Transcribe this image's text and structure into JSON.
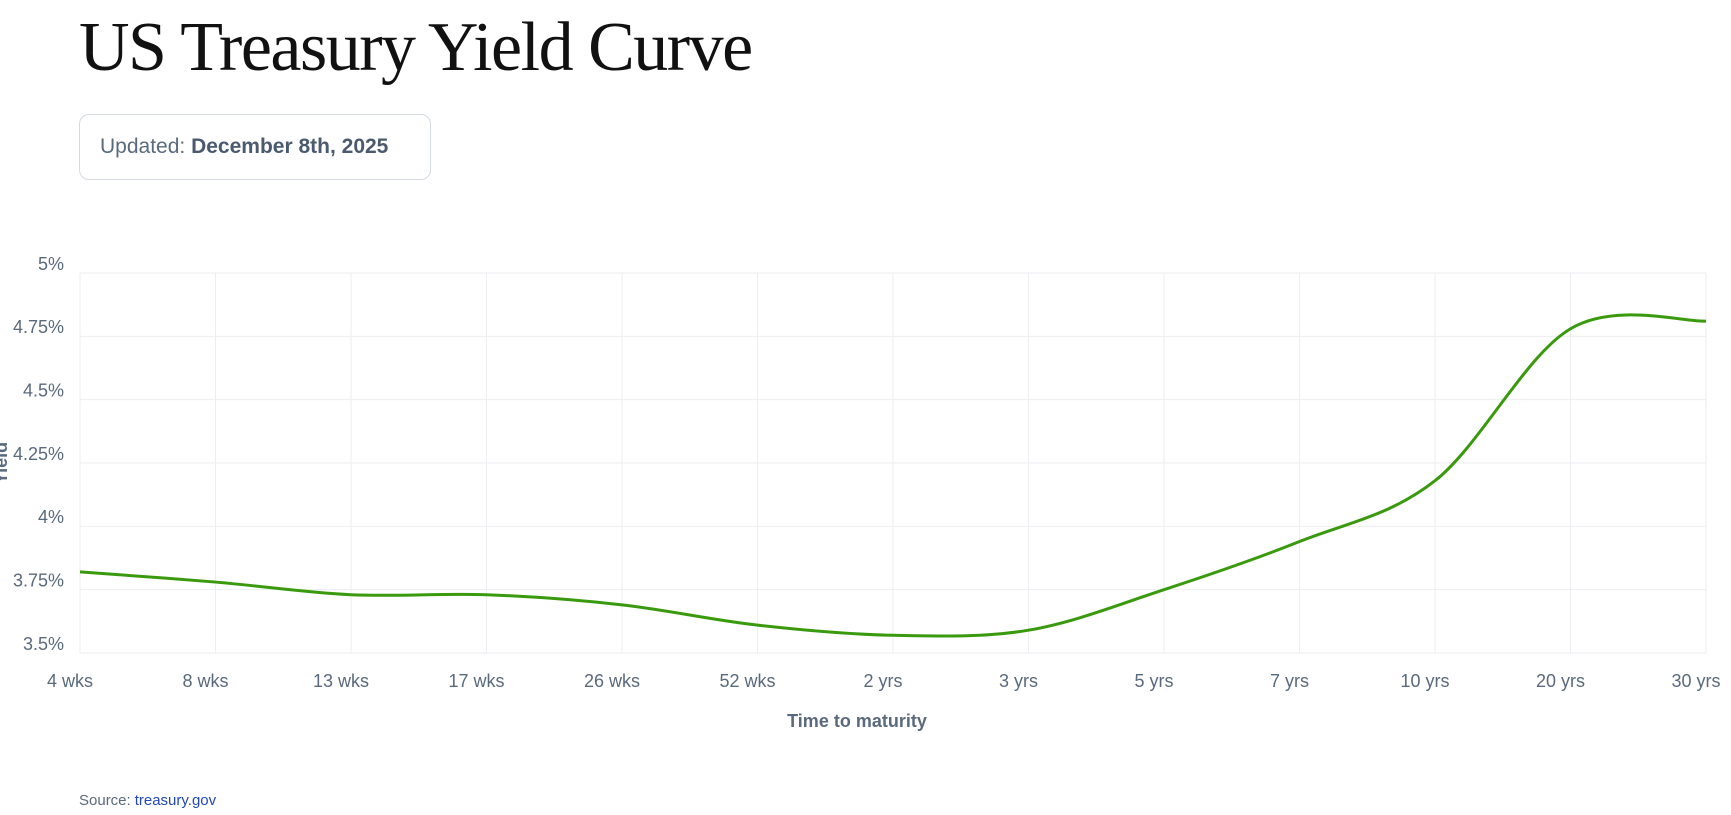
{
  "chart_data": {
    "type": "line",
    "title": "US Treasury Yield Curve",
    "updated_label": "Updated:",
    "updated_date": "December 8th, 2025",
    "categories": [
      "4 wks",
      "8 wks",
      "13 wks",
      "17 wks",
      "26 wks",
      "52 wks",
      "2 yrs",
      "3 yrs",
      "5 yrs",
      "7 yrs",
      "10 yrs",
      "20 yrs",
      "30 yrs"
    ],
    "values": [
      3.82,
      3.78,
      3.73,
      3.73,
      3.69,
      3.61,
      3.57,
      3.59,
      3.75,
      3.94,
      4.18,
      4.78,
      4.81
    ],
    "color": "#3a9a0e",
    "xlabel": "Time to maturity",
    "ylabel": "Yield",
    "ylim": [
      3.5,
      5
    ],
    "yticks": [
      {
        "value": 3.5,
        "label": "3.5%"
      },
      {
        "value": 3.75,
        "label": "3.75%"
      },
      {
        "value": 4,
        "label": "4%"
      },
      {
        "value": 4.25,
        "label": "4.25%"
      },
      {
        "value": 4.5,
        "label": "4.5%"
      },
      {
        "value": 4.75,
        "label": "4.75%"
      },
      {
        "value": 5,
        "label": "5%"
      }
    ],
    "grid": true
  },
  "source": {
    "label": "Source:",
    "link": "treasury.gov"
  }
}
